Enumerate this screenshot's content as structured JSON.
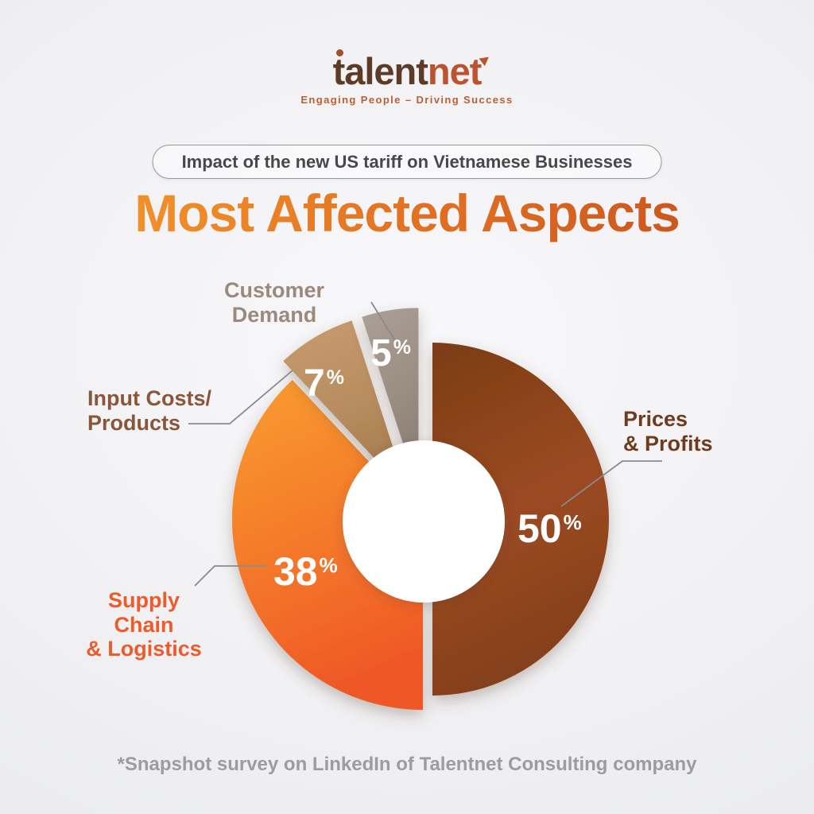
{
  "logo": {
    "brand_part1": "talent",
    "brand_part2": "net",
    "tagline": "Engaging People – Driving Success",
    "color_primary": "#5D3B26",
    "color_secondary": "#BE5230",
    "tagline_color": "#BC5E31"
  },
  "badge": {
    "text": "Impact of the new US tariff on Vietnamese Businesses"
  },
  "title": {
    "text": "Most Affected Aspects",
    "gradient_from": "#F79A2D",
    "gradient_mid": "#E06E22",
    "gradient_to": "#C04A1C"
  },
  "footnote": {
    "text": "*Snapshot survey on LinkedIn of Talentnet Consulting company"
  },
  "chart_data": {
    "type": "pie",
    "subtype": "donut",
    "title": "Most Affected Aspects",
    "unit": "%",
    "categories": [
      "Prices & Profits",
      "Supply Chain & Logistics",
      "Input Costs/Products",
      "Customer Demand"
    ],
    "values": [
      50,
      38,
      7,
      5
    ],
    "start_angle_deg": 0,
    "direction": "clockwise",
    "legend": "none",
    "slices": [
      {
        "id": "prices-profits",
        "label": "Prices & Profits",
        "label_lines": [
          "Prices",
          "& Profits"
        ],
        "value": 50,
        "label_color": "#6E3B1E",
        "gradient": [
          [
            "0%",
            "#7B3D13"
          ],
          [
            "55%",
            "#9C4A22"
          ],
          [
            "100%",
            "#84401A"
          ]
        ],
        "radius": 222,
        "explode": 12
      },
      {
        "id": "supply-chain-logistics",
        "label": "Supply Chain & Logistics",
        "label_lines": [
          "Supply Chain",
          "& Logistics"
        ],
        "value": 38,
        "label_color": "#EF5A2B",
        "gradient": [
          [
            "0%",
            "#F99D2F"
          ],
          [
            "60%",
            "#F4762A"
          ],
          [
            "100%",
            "#EF5926"
          ]
        ],
        "radius": 240,
        "explode": 0
      },
      {
        "id": "input-costs-products",
        "label": "Input Costs/Products",
        "label_lines": [
          "Input Costs/",
          "Products"
        ],
        "value": 7,
        "label_color": "#8A5639",
        "gradient": [
          [
            "0%",
            "#C89C6F"
          ],
          [
            "60%",
            "#B78C5E"
          ],
          [
            "100%",
            "#A67C4E"
          ]
        ],
        "radius": 230,
        "explode": 36
      },
      {
        "id": "customer-demand",
        "label": "Customer Demand",
        "label_lines": [
          "Customer Demand"
        ],
        "value": 5,
        "label_color": "#9A8A7D",
        "gradient": [
          [
            "0%",
            "#ACA197"
          ],
          [
            "60%",
            "#9A8D82"
          ],
          [
            "100%",
            "#8B7E72"
          ]
        ],
        "radius": 230,
        "explode": 36
      }
    ]
  }
}
